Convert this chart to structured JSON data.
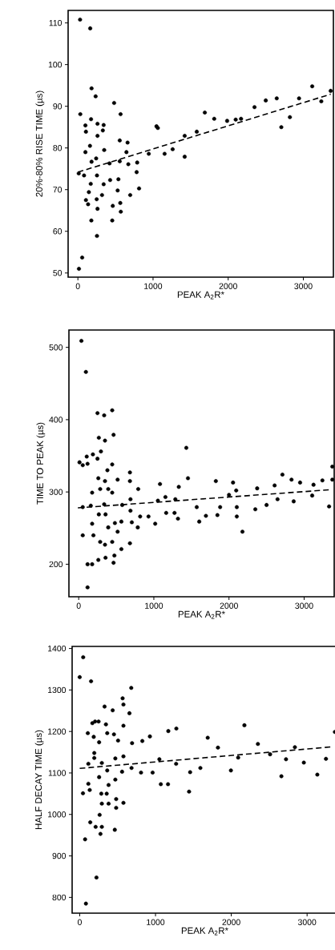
{
  "chart_data": [
    {
      "type": "scatter",
      "xlabel": "PEAK A$_{2}$R*",
      "ylabel": "20%-80% RISE TIME (µs)",
      "xlim": [
        -130,
        3400
      ],
      "ylim": [
        49,
        113
      ],
      "xticks": [
        0,
        1000,
        2000,
        3000
      ],
      "yticks": [
        50,
        60,
        70,
        80,
        90,
        100,
        110
      ],
      "series": [
        {
          "marker": "circle",
          "color": "#000000",
          "x": [
            29,
            164,
            182,
            236,
            482,
            32,
            568,
            175,
            261,
            100,
            107,
            343,
            332,
            261,
            557,
            661,
            1046,
            1064,
            161,
            350,
            100,
            646,
            943,
            1154,
            1261,
            182,
            243,
            421,
            557,
            671,
            789,
            1421,
            1421,
            1582,
            1689,
            1814,
            1986,
            2100,
            2171,
            2350,
            2500,
            2646,
            2707,
            2821,
            2943,
            3118,
            3239,
            3364,
            11,
            82,
            254,
            171,
            343,
            429,
            539,
            146,
            321,
            529,
            696,
            814,
            782,
            107,
            136,
            250,
            464,
            261,
            564,
            571,
            179,
            457,
            254,
            57,
            14
          ],
          "values": [
            110.8,
            108.7,
            94.3,
            92.4,
            90.8,
            88.1,
            88.1,
            86.9,
            85.8,
            85.4,
            83.9,
            85.5,
            84.2,
            82.9,
            81.8,
            81.3,
            85.2,
            84.8,
            80.5,
            79.5,
            79.0,
            79.0,
            78.6,
            78.6,
            79.7,
            76.7,
            77.5,
            76.3,
            76.8,
            76.1,
            76.5,
            82.9,
            77.9,
            83.9,
            88.5,
            87.0,
            86.5,
            86.8,
            87.0,
            89.8,
            91.4,
            91.9,
            85.0,
            87.4,
            91.9,
            94.8,
            91.2,
            93.7,
            73.9,
            73.4,
            73.4,
            71.4,
            71.3,
            72.3,
            72.5,
            69.4,
            68.7,
            69.8,
            68.7,
            70.3,
            74.2,
            67.5,
            66.5,
            67.7,
            66.1,
            65.4,
            66.8,
            64.7,
            62.6,
            62.6,
            58.9,
            53.7,
            51.0
          ]
        },
        {
          "type": "line",
          "line_style": "dashed",
          "color": "#000000",
          "x": [
            0,
            3364
          ],
          "values": [
            74.2,
            92.9
          ]
        }
      ]
    },
    {
      "type": "scatter",
      "xlabel": "PEAK A$_{2}$R*",
      "ylabel": "TIME TO PEAK (µs)",
      "xlim": [
        -130,
        3400
      ],
      "ylim": [
        155,
        524
      ],
      "xticks": [
        0,
        1000,
        2000,
        3000
      ],
      "yticks": [
        200,
        300,
        400,
        500
      ],
      "series": [
        {
          "marker": "circle",
          "color": "#000000",
          "x": [
            36,
            96,
            250,
            339,
            446,
            268,
            350,
            464,
            296,
            189,
            107,
            250,
            446,
            382,
            11,
            54,
            118,
            261,
            350,
            518,
            682,
            682,
            286,
            393,
            446,
            179,
            792,
            1082,
            1332,
            1432,
            1454,
            1825,
            2054,
            2096,
            2375,
            2607,
            2711,
            2832,
            2946,
            3125,
            3243,
            3375,
            3375,
            3332,
            3107,
            2861,
            2646,
            2500,
            2350,
            2104,
            2104,
            2179,
            2000,
            1846,
            1882,
            1693,
            1604,
            1571,
            1286,
            1321,
            1275,
            1164,
            1018,
            929,
            1154,
            1054,
            818,
            786,
            689,
            689,
            707,
            682,
            568,
            568,
            579,
            475,
            464,
            357,
            261,
            179,
            118,
            118,
            54,
            196,
            286,
            350,
            446,
            518,
            393,
            179,
            268,
            357,
            482,
            54,
            161,
            339
          ],
          "values": [
            509,
            466,
            409,
            406,
            413,
            375,
            371,
            379,
            356,
            352,
            349,
            346,
            338,
            330,
            341,
            337,
            339,
            319,
            315,
            317,
            327,
            315,
            304,
            304,
            299,
            299,
            304,
            311,
            307,
            361,
            319,
            315,
            313,
            302,
            305,
            309,
            324,
            317,
            313,
            310,
            316,
            335,
            317,
            280,
            295,
            287,
            290,
            282,
            276,
            279,
            266,
            245,
            296,
            268,
            279,
            267,
            259,
            279,
            290,
            263,
            271,
            271,
            256,
            266,
            293,
            288,
            266,
            251,
            290,
            274,
            258,
            229,
            259,
            221,
            282,
            212,
            202,
            209,
            206,
            200,
            200,
            168,
            240,
            240,
            231,
            227,
            231,
            245,
            251,
            256,
            269,
            269,
            257,
            279,
            281,
            283
          ]
        },
        {
          "type": "line",
          "line_style": "dashed",
          "color": "#000000",
          "x": [
            -11,
            3339
          ],
          "values": [
            278,
            303
          ]
        }
      ]
    },
    {
      "type": "scatter",
      "xlabel": "PEAK A$_{2}$R*",
      "ylabel": "HALF DECAY TIME (µs)",
      "xlim": [
        -100,
        3400
      ],
      "ylim": [
        762,
        1405
      ],
      "xticks": [
        0,
        1000,
        2000,
        3000
      ],
      "yticks": [
        800,
        900,
        1000,
        1100,
        1200,
        1300,
        1400
      ],
      "series": [
        {
          "marker": "circle",
          "color": "#000000",
          "x": [
            46,
            0,
            150,
            680,
            328,
            435,
            566,
            577,
            656,
            577,
            346,
            203,
            249,
            167,
            107,
            185,
            256,
            363,
            452,
            506,
            691,
            826,
            926,
            1169,
            1275,
            2173,
            1689,
            1824,
            2351,
            2839,
            3367,
            1051,
            1272,
            1457,
            1592,
            1070,
            1165,
            1443,
            1995,
            2091,
            2512,
            2661,
            2722,
            2957,
            3135,
            3249,
            962,
            809,
            684,
            577,
            470,
            470,
            363,
            256,
            114,
            132,
            43,
            285,
            381,
            356,
            292,
            381,
            481,
            481,
            577,
            263,
            139,
            210,
            292,
            274,
            463,
            71,
            221,
            82,
            114,
            292,
            192,
            192,
            559
          ],
          "values": [
            1379,
            1331,
            1321,
            1305,
            1260,
            1251,
            1280,
            1265,
            1244,
            1214,
            1217,
            1224,
            1224,
            1220,
            1196,
            1187,
            1174,
            1196,
            1193,
            1178,
            1172,
            1177,
            1188,
            1201,
            1207,
            1215,
            1185,
            1161,
            1170,
            1162,
            1199,
            1133,
            1122,
            1102,
            1112,
            1073,
            1073,
            1055,
            1106,
            1137,
            1145,
            1092,
            1133,
            1125,
            1096,
            1134,
            1101,
            1101,
            1112,
            1140,
            1135,
            1084,
            1106,
            1090,
            1074,
            1059,
            1051,
            1050,
            1071,
            1050,
            1026,
            1026,
            1037,
            1016,
            1028,
            999,
            981,
            970,
            970,
            953,
            963,
            940,
            848,
            785,
            1122,
            1124,
            1136,
            1148,
            1103
          ]
        },
        {
          "type": "line",
          "line_style": "dashed",
          "color": "#000000",
          "x": [
            0,
            3335
          ],
          "values": [
            1111,
            1163
          ]
        }
      ]
    }
  ]
}
